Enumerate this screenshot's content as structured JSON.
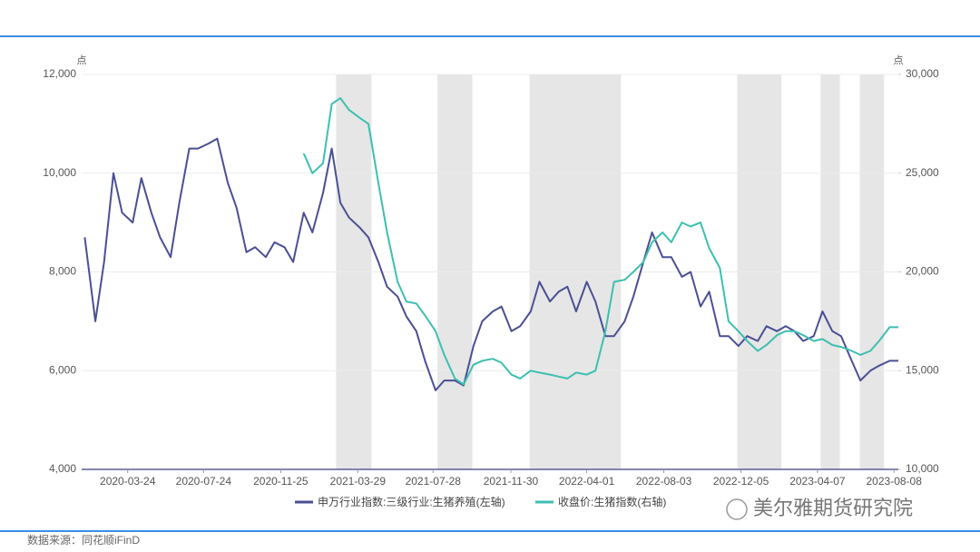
{
  "chart_data": {
    "type": "line",
    "left_unit": "点",
    "right_unit": "点",
    "xlim": [
      "2020-01-10",
      "2023-08-15"
    ],
    "xticks": [
      "2020-03-24",
      "2020-07-24",
      "2020-11-25",
      "2021-03-29",
      "2021-07-28",
      "2021-11-30",
      "2022-04-01",
      "2022-08-03",
      "2022-12-05",
      "2023-04-07",
      "2023-08-08"
    ],
    "ylim": [
      4000,
      12000
    ],
    "yticks": [
      {
        "value": 4000,
        "label": "4,000"
      },
      {
        "value": 6000,
        "label": "6,000"
      },
      {
        "value": 8000,
        "label": "8,000"
      },
      {
        "value": 10000,
        "label": "10,000"
      },
      {
        "value": 12000,
        "label": "12,000"
      }
    ],
    "y2lim": [
      10000,
      30000
    ],
    "y2ticks": [
      {
        "value": 10000,
        "label": "10,000"
      },
      {
        "value": 15000,
        "label": "15,000"
      },
      {
        "value": 20000,
        "label": "20,000"
      },
      {
        "value": 25000,
        "label": "25,000"
      },
      {
        "value": 30000,
        "label": "30,000"
      }
    ],
    "grid": true,
    "shaded_ranges": [
      [
        "2021-02-22",
        "2021-04-20"
      ],
      [
        "2021-08-04",
        "2021-09-29"
      ],
      [
        "2021-12-30",
        "2022-05-26"
      ],
      [
        "2022-11-29",
        "2023-02-08"
      ],
      [
        "2023-04-12",
        "2023-05-13"
      ],
      [
        "2023-06-14",
        "2023-07-23"
      ]
    ],
    "shade_color": "#e6e6e6",
    "x": [
      "2020-01-15",
      "2020-02-01",
      "2020-02-15",
      "2020-03-01",
      "2020-03-15",
      "2020-04-01",
      "2020-04-15",
      "2020-05-01",
      "2020-05-15",
      "2020-06-01",
      "2020-06-15",
      "2020-07-01",
      "2020-07-15",
      "2020-08-01",
      "2020-08-15",
      "2020-09-01",
      "2020-09-15",
      "2020-10-01",
      "2020-10-15",
      "2020-11-01",
      "2020-11-15",
      "2020-12-01",
      "2020-12-15",
      "2021-01-01",
      "2021-01-15",
      "2021-02-01",
      "2021-02-15",
      "2021-03-01",
      "2021-03-15",
      "2021-04-01",
      "2021-04-15",
      "2021-05-01",
      "2021-05-15",
      "2021-06-01",
      "2021-06-15",
      "2021-07-01",
      "2021-07-15",
      "2021-08-01",
      "2021-08-15",
      "2021-09-01",
      "2021-09-15",
      "2021-10-01",
      "2021-10-15",
      "2021-11-01",
      "2021-11-15",
      "2021-12-01",
      "2021-12-15",
      "2022-01-01",
      "2022-01-15",
      "2022-02-01",
      "2022-02-15",
      "2022-03-01",
      "2022-03-15",
      "2022-04-01",
      "2022-04-15",
      "2022-05-01",
      "2022-05-15",
      "2022-06-01",
      "2022-06-15",
      "2022-07-01",
      "2022-07-15",
      "2022-08-01",
      "2022-08-15",
      "2022-09-01",
      "2022-09-15",
      "2022-10-01",
      "2022-10-15",
      "2022-11-01",
      "2022-11-15",
      "2022-12-01",
      "2022-12-15",
      "2023-01-01",
      "2023-01-15",
      "2023-02-01",
      "2023-02-15",
      "2023-03-01",
      "2023-03-15",
      "2023-04-01",
      "2023-04-15",
      "2023-05-01",
      "2023-05-15",
      "2023-06-01",
      "2023-06-15",
      "2023-07-01",
      "2023-07-15",
      "2023-08-01",
      "2023-08-15"
    ],
    "series": [
      {
        "name": "申万行业指数:三级行业:生猪养殖(左轴)",
        "color": "#4a4f94",
        "axis": "y",
        "values": [
          8700,
          7000,
          8200,
          10000,
          9200,
          9000,
          9900,
          9200,
          8700,
          8300,
          9400,
          10500,
          10500,
          10600,
          10700,
          9800,
          9300,
          8400,
          8500,
          8300,
          8600,
          8500,
          8200,
          9200,
          8800,
          9600,
          10500,
          9400,
          9100,
          8900,
          8700,
          8200,
          7700,
          7500,
          7100,
          6800,
          6200,
          5600,
          5800,
          5800,
          5700,
          6500,
          7000,
          7200,
          7300,
          6800,
          6900,
          7200,
          7800,
          7400,
          7600,
          7700,
          7200,
          7800,
          7400,
          6700,
          6700,
          7000,
          7500,
          8200,
          8800,
          8300,
          8300,
          7900,
          8000,
          7300,
          7600,
          6700,
          6700,
          6500,
          6700,
          6600,
          6900,
          6800,
          6900,
          6800,
          6600,
          6700,
          7200,
          6800,
          6700,
          6200,
          5800,
          6000,
          6100,
          6200,
          6200
        ]
      },
      {
        "name": "收盘价:生猪指数(右轴)",
        "color": "#3dbfb0",
        "axis": "y2",
        "values": [
          null,
          null,
          null,
          null,
          null,
          null,
          null,
          null,
          null,
          null,
          null,
          null,
          null,
          null,
          null,
          null,
          null,
          null,
          null,
          null,
          null,
          null,
          null,
          26000,
          25000,
          25500,
          28500,
          28800,
          28200,
          27800,
          27500,
          24500,
          22000,
          19500,
          18500,
          18400,
          17800,
          17000,
          15800,
          14600,
          14300,
          15300,
          15500,
          15600,
          15400,
          14800,
          14600,
          15000,
          14900,
          14800,
          14700,
          14600,
          14900,
          14800,
          15000,
          17000,
          19500,
          19600,
          20000,
          20500,
          21500,
          22000,
          21500,
          22500,
          22300,
          22500,
          21200,
          20200,
          17500,
          17000,
          16500,
          16000,
          16300,
          16800,
          17000,
          17000,
          16800,
          16500,
          16600,
          16300,
          16200,
          16000,
          15800,
          16000,
          16500,
          17200,
          17200
        ]
      }
    ],
    "watermark": "美尔雅期货研究院",
    "source": "数据来源：同花顺iFinD"
  }
}
